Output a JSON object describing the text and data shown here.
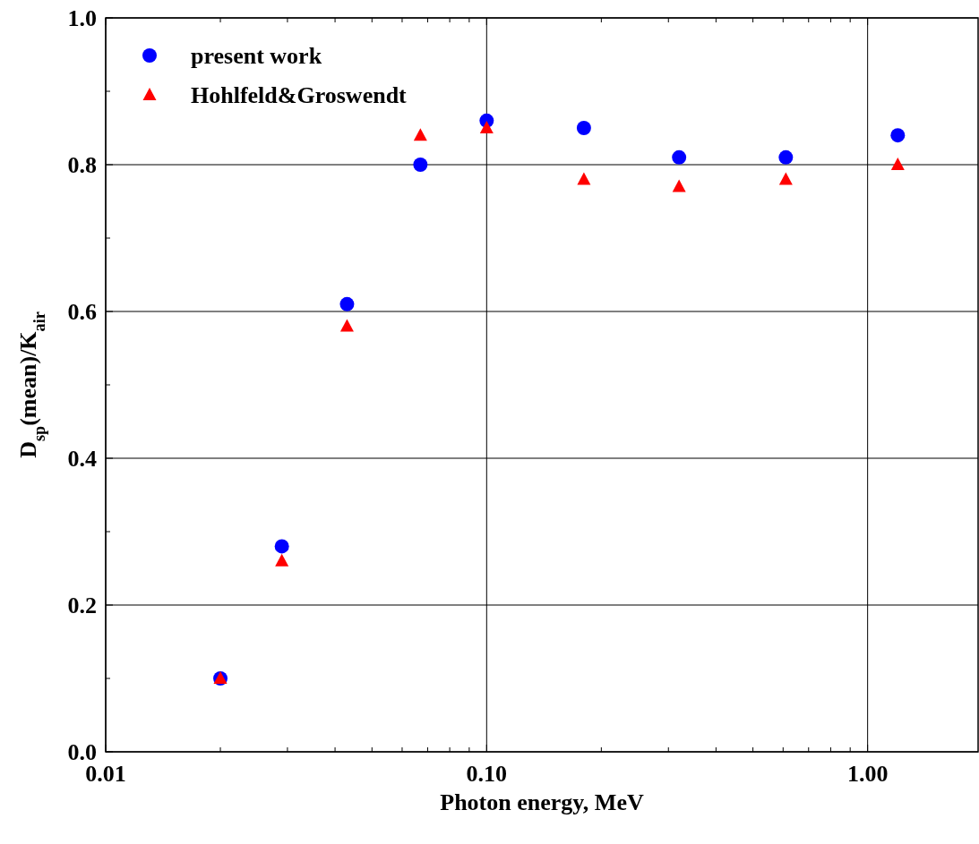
{
  "chart_data": {
    "type": "scatter",
    "xlabel": "Photon energy, MeV",
    "ylabel": "D$_{sp}$(mean)/K$_{air}$",
    "log": "x",
    "x": [
      0.02,
      0.029,
      0.043,
      0.067,
      0.1,
      0.18,
      0.32,
      0.61,
      1.2
    ],
    "series": [
      {
        "name": "present work",
        "color": "#0000ff",
        "marker": "circle",
        "values": [
          0.1,
          0.28,
          0.61,
          0.8,
          0.86,
          0.85,
          0.81,
          0.81,
          0.84
        ]
      },
      {
        "name": "Hohlfeld&Groswendt",
        "color": "#ff0000",
        "marker": "triangle",
        "values": [
          0.1,
          0.26,
          0.58,
          0.84,
          0.85,
          0.78,
          0.77,
          0.78,
          0.8
        ]
      }
    ],
    "xlim": [
      0.01,
      1.95
    ],
    "xticks": [
      {
        "value": 0.01,
        "label": "0.01"
      },
      {
        "value": 0.02,
        "label": null
      },
      {
        "value": 0.03,
        "label": null
      },
      {
        "value": 0.04,
        "label": null
      },
      {
        "value": 0.05,
        "label": null
      },
      {
        "value": 0.06,
        "label": null
      },
      {
        "value": 0.07,
        "label": null
      },
      {
        "value": 0.08,
        "label": null
      },
      {
        "value": 0.09,
        "label": null
      },
      {
        "value": 0.1,
        "label": "0.10"
      },
      {
        "value": 0.2,
        "label": null
      },
      {
        "value": 0.3,
        "label": null
      },
      {
        "value": 0.4,
        "label": null
      },
      {
        "value": 0.5,
        "label": null
      },
      {
        "value": 0.6,
        "label": null
      },
      {
        "value": 0.7,
        "label": null
      },
      {
        "value": 0.8,
        "label": null
      },
      {
        "value": 0.9,
        "label": null
      },
      {
        "value": 1,
        "label": "1.00"
      }
    ],
    "ylim": [
      0,
      1
    ],
    "yticks": [
      {
        "value": 0,
        "label": "0.0"
      },
      {
        "value": 0.1,
        "label": null
      },
      {
        "value": 0.2,
        "label": "0.2"
      },
      {
        "value": 0.3,
        "label": null
      },
      {
        "value": 0.4,
        "label": "0.4"
      },
      {
        "value": 0.5,
        "label": null
      },
      {
        "value": 0.6,
        "label": "0.6"
      },
      {
        "value": 0.7,
        "label": null
      },
      {
        "value": 0.8,
        "label": "0.8"
      },
      {
        "value": 0.9,
        "label": null
      },
      {
        "value": 1,
        "label": "1.0"
      }
    ],
    "grid": true,
    "legend": "top left"
  }
}
